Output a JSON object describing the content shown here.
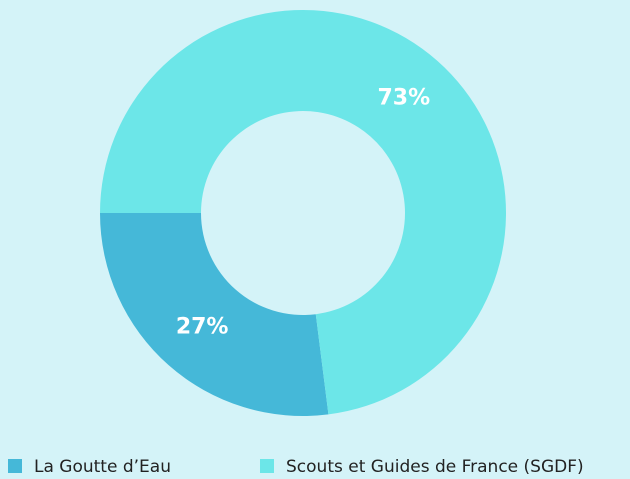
{
  "chart_data": {
    "type": "donut",
    "categories": [
      "La Goutte d’Eau",
      "Scouts et Guides de France (SGDF)"
    ],
    "values": [
      27,
      73
    ],
    "value_labels": [
      "27%",
      "73%"
    ],
    "colors": [
      "#45b8d8",
      "#6ce6e8"
    ]
  }
}
